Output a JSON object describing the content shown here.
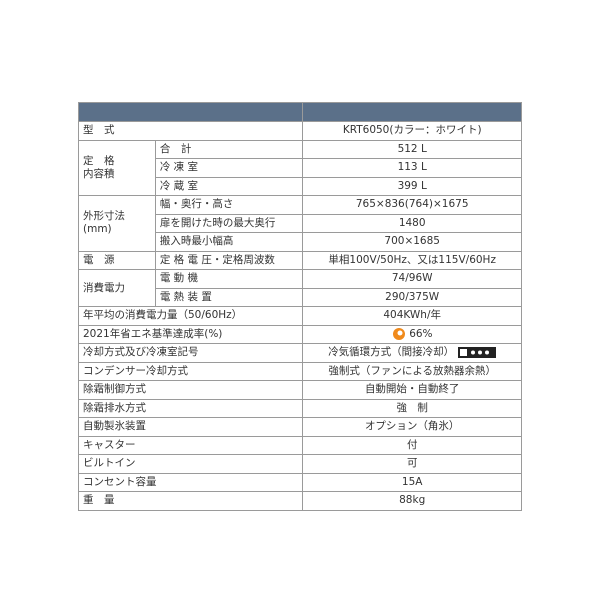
{
  "table": {
    "rows": [
      {
        "label": "型　式",
        "value": "KRT6050(カラー：ホワイト)"
      },
      {
        "label": "定　格\n内容積",
        "items": [
          {
            "label": "合　計",
            "value": "512 L"
          },
          {
            "label": "冷 凍 室",
            "value": "113 L"
          },
          {
            "label": "冷 蔵 室",
            "value": "399 L"
          }
        ]
      },
      {
        "label": "外形寸法\n(mm)",
        "items": [
          {
            "label": "幅・奥行・高さ",
            "value": "765×836(764)×1675"
          },
          {
            "label": "扉を開けた時の最大奥行",
            "value": "1480"
          },
          {
            "label": "搬入時最小幅高",
            "value": "700×1685"
          }
        ]
      },
      {
        "label": "電　源",
        "items": [
          {
            "label": "定 格 電 圧・定格周波数",
            "value": "単相100V/50Hz、又は115V/60Hz"
          }
        ]
      },
      {
        "label": "消費電力",
        "items": [
          {
            "label": "電 動 機",
            "value": "74/96W"
          },
          {
            "label": "電 熱 装 置",
            "value": "290/375W"
          }
        ]
      },
      {
        "label": "年平均の消費電力量（50/60Hz）",
        "value": "404KWh/年"
      },
      {
        "label": "2021年省エネ基準達成率(%)",
        "value": "66%"
      },
      {
        "label": "冷却方式及び冷凍室記号",
        "value": "冷気循環方式（間接冷却）"
      },
      {
        "label": "コンデンサー冷却方式",
        "value": "強制式（ファンによる放熱器余熱）"
      },
      {
        "label": "除霜制御方式",
        "value": "自動開始・自動終了"
      },
      {
        "label": "除霜排水方式",
        "value": "強　制"
      },
      {
        "label": "自動製氷装置",
        "value": "オプション（角氷）"
      },
      {
        "label": "キャスター",
        "value": "付"
      },
      {
        "label": "ビルトイン",
        "value": "可"
      },
      {
        "label": "コンセント容量",
        "value": "15A"
      },
      {
        "label": "重　量",
        "value": "88kg"
      }
    ]
  }
}
